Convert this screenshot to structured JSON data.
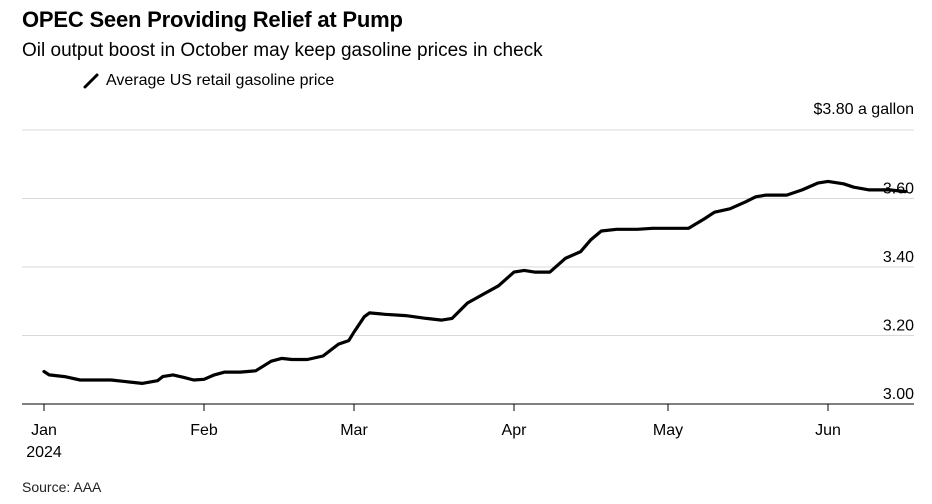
{
  "chart_data": {
    "type": "line",
    "title": "OPEC Seen Providing Relief at Pump",
    "subtitle": "Oil output boost in October may keep gasoline prices in check",
    "unit_label": "$3.80 a gallon",
    "source": "Source: AAA",
    "legend": [
      "Average US retail gasoline price"
    ],
    "yticks": [
      "3.00",
      "3.20",
      "3.40",
      "3.60"
    ],
    "ylim": [
      3.0,
      3.8
    ],
    "xticks": [
      {
        "label": "Jan",
        "sub": "2024",
        "date": "2024-01-01"
      },
      {
        "label": "Feb",
        "sub": "",
        "date": "2024-02-01"
      },
      {
        "label": "Mar",
        "sub": "",
        "date": "2024-03-01"
      },
      {
        "label": "Apr",
        "sub": "",
        "date": "2024-04-01"
      },
      {
        "label": "May",
        "sub": "",
        "date": "2024-05-01"
      },
      {
        "label": "Jun",
        "sub": "",
        "date": "2024-06-01"
      }
    ],
    "grid": true,
    "series": [
      {
        "name": "Average US retail gasoline price",
        "color": "#000000",
        "points": [
          [
            "2024-01-01",
            3.095
          ],
          [
            "2024-01-02",
            3.085
          ],
          [
            "2024-01-05",
            3.08
          ],
          [
            "2024-01-08",
            3.07
          ],
          [
            "2024-01-11",
            3.07
          ],
          [
            "2024-01-14",
            3.07
          ],
          [
            "2024-01-17",
            3.065
          ],
          [
            "2024-01-20",
            3.06
          ],
          [
            "2024-01-23",
            3.068
          ],
          [
            "2024-01-24",
            3.08
          ],
          [
            "2024-01-26",
            3.085
          ],
          [
            "2024-01-28",
            3.078
          ],
          [
            "2024-01-30",
            3.07
          ],
          [
            "2024-02-01",
            3.072
          ],
          [
            "2024-02-03",
            3.085
          ],
          [
            "2024-02-05",
            3.093
          ],
          [
            "2024-02-08",
            3.093
          ],
          [
            "2024-02-11",
            3.097
          ],
          [
            "2024-02-14",
            3.125
          ],
          [
            "2024-02-16",
            3.133
          ],
          [
            "2024-02-18",
            3.13
          ],
          [
            "2024-02-21",
            3.13
          ],
          [
            "2024-02-24",
            3.14
          ],
          [
            "2024-02-27",
            3.175
          ],
          [
            "2024-02-29",
            3.185
          ],
          [
            "2024-03-01",
            3.21
          ],
          [
            "2024-03-03",
            3.255
          ],
          [
            "2024-03-04",
            3.266
          ],
          [
            "2024-03-07",
            3.262
          ],
          [
            "2024-03-11",
            3.258
          ],
          [
            "2024-03-15",
            3.25
          ],
          [
            "2024-03-18",
            3.245
          ],
          [
            "2024-03-20",
            3.25
          ],
          [
            "2024-03-23",
            3.295
          ],
          [
            "2024-03-26",
            3.32
          ],
          [
            "2024-03-29",
            3.345
          ],
          [
            "2024-04-01",
            3.385
          ],
          [
            "2024-04-03",
            3.39
          ],
          [
            "2024-04-05",
            3.385
          ],
          [
            "2024-04-08",
            3.385
          ],
          [
            "2024-04-11",
            3.425
          ],
          [
            "2024-04-14",
            3.445
          ],
          [
            "2024-04-16",
            3.48
          ],
          [
            "2024-04-18",
            3.505
          ],
          [
            "2024-04-21",
            3.51
          ],
          [
            "2024-04-25",
            3.51
          ],
          [
            "2024-04-28",
            3.513
          ],
          [
            "2024-05-01",
            3.513
          ],
          [
            "2024-05-05",
            3.513
          ],
          [
            "2024-05-08",
            3.54
          ],
          [
            "2024-05-10",
            3.56
          ],
          [
            "2024-05-13",
            3.57
          ],
          [
            "2024-05-16",
            3.59
          ],
          [
            "2024-05-18",
            3.605
          ],
          [
            "2024-05-20",
            3.61
          ],
          [
            "2024-05-24",
            3.61
          ],
          [
            "2024-05-27",
            3.625
          ],
          [
            "2024-05-30",
            3.645
          ],
          [
            "2024-06-01",
            3.65
          ],
          [
            "2024-06-04",
            3.643
          ],
          [
            "2024-06-06",
            3.633
          ],
          [
            "2024-06-09",
            3.625
          ],
          [
            "2024-06-13",
            3.625
          ],
          [
            "2024-06-16",
            3.62
          ]
        ]
      }
    ]
  }
}
